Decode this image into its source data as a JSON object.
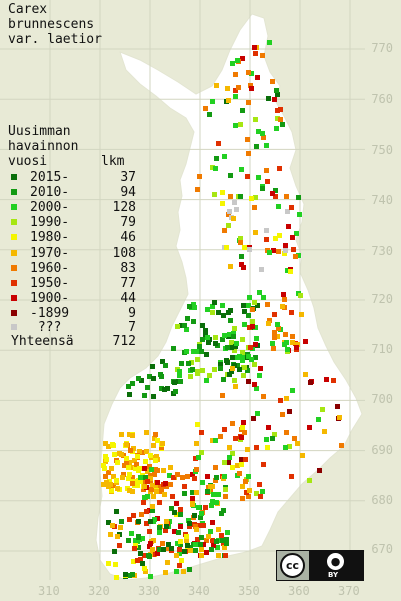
{
  "title": {
    "line1": "Carex",
    "line2": "brunnescens",
    "line3": "var. laetior"
  },
  "legend": {
    "heading": [
      "Uusimman",
      "havainnon",
      "vuosi"
    ],
    "count_heading": "lkm",
    "rows": [
      {
        "label": "2015-",
        "count": "37",
        "color": "#0a6e0a"
      },
      {
        "label": "2010-",
        "count": "94",
        "color": "#139a13"
      },
      {
        "label": "2000-",
        "count": "128",
        "color": "#22d022"
      },
      {
        "label": "1990-",
        "count": "79",
        "color": "#a6e612"
      },
      {
        "label": "1980-",
        "count": "46",
        "color": "#f5f500"
      },
      {
        "label": "1970-",
        "count": "108",
        "color": "#f5b800"
      },
      {
        "label": "1960-",
        "count": "83",
        "color": "#f07a00"
      },
      {
        "label": "1950-",
        "count": "77",
        "color": "#e03000"
      },
      {
        "label": "1900-",
        "count": "44",
        "color": "#c80000"
      },
      {
        "label": "-1899",
        "count": "9",
        "color": "#8a0000"
      },
      {
        "label": " ???",
        "count": "7",
        "color": "#c8c8c8"
      }
    ],
    "total_label": "Yhteensä",
    "total_count": "712"
  },
  "y_axis_labels": [
    "770",
    "760",
    "750",
    "740",
    "730",
    "720",
    "710",
    "700",
    "690",
    "680",
    "670"
  ],
  "x_axis_labels": [
    "310",
    "320",
    "330",
    "340",
    "350",
    "360",
    "370"
  ],
  "license_badge": {
    "cc_text": "cc",
    "by_text": "BY",
    "by_icon": "person-icon"
  },
  "colors": {
    "background": "#e8ead6",
    "land": "#ffffff",
    "grid": "#d2d5c0",
    "axis_text": "#bfc3ae"
  }
}
